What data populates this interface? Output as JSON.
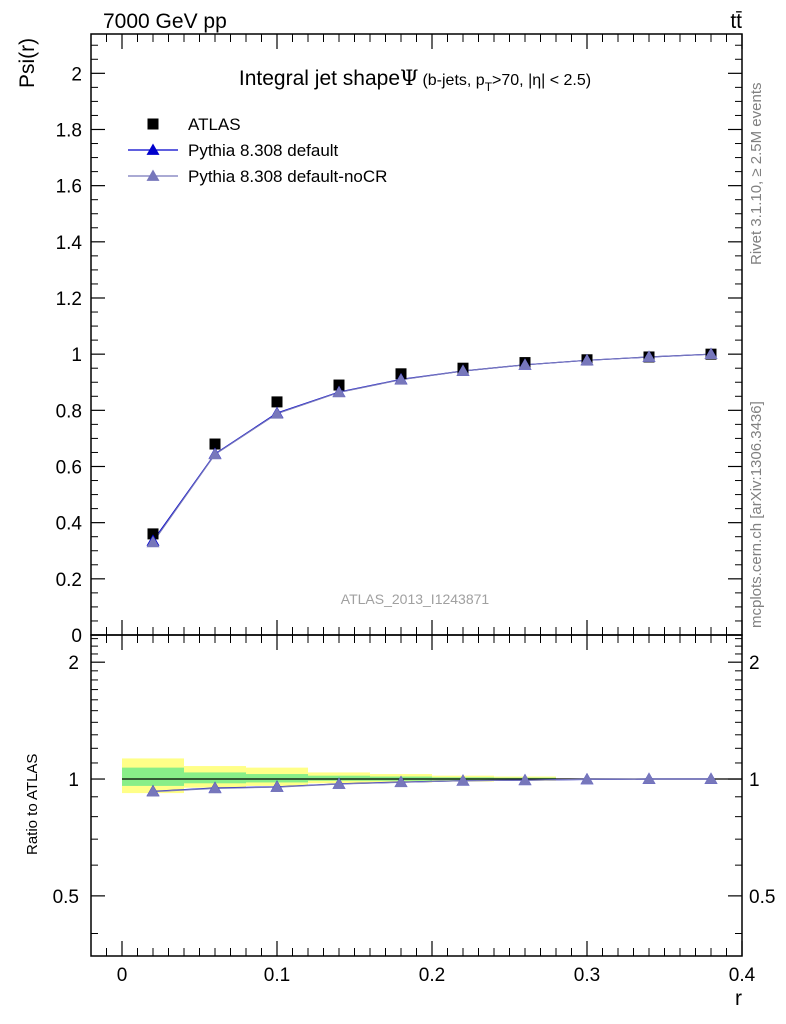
{
  "header": {
    "energy_label": "7000 GeV pp",
    "process_label": "tt̄"
  },
  "side_labels": {
    "rivet": "Rivet 3.1.10, ≥ 2.5M events",
    "mcplots": "mcplots.cern.ch [arXiv:1306.3436]"
  },
  "chart_data": [
    {
      "type": "scatter",
      "title_main": "Integral jet shape",
      "title_symbol": "Ψ",
      "title_sub": "(b-jets, p",
      "title_sub_subscript": "T",
      "title_sub_rest": ">70, |η| < 2.5)",
      "ylabel": "Psi(r)",
      "xlabel": "r",
      "watermark": "ATLAS_2013_I1243871",
      "xlim": [
        -0.02,
        0.4
      ],
      "ylim": [
        0,
        2.14
      ],
      "yticks": [
        0,
        0.2,
        0.4,
        0.6,
        0.8,
        1,
        1.2,
        1.4,
        1.6,
        1.8,
        2
      ],
      "ytick_labels": [
        "0",
        "0.2",
        "0.4",
        "0.6",
        "0.8",
        "1",
        "1.2",
        "1.4",
        "1.6",
        "1.8",
        "2"
      ],
      "legend_position": "top-left",
      "series": [
        {
          "name": "ATLAS",
          "marker": "square",
          "color": "#000000",
          "x": [
            0.02,
            0.06,
            0.1,
            0.14,
            0.18,
            0.22,
            0.26,
            0.3,
            0.34,
            0.38
          ],
          "y": [
            0.36,
            0.68,
            0.83,
            0.89,
            0.93,
            0.95,
            0.97,
            0.98,
            0.99,
            1.0
          ]
        },
        {
          "name": "Pythia 8.308 default",
          "marker": "triangle",
          "color": "#0000cc",
          "x": [
            0.02,
            0.06,
            0.1,
            0.14,
            0.18,
            0.22,
            0.26,
            0.3,
            0.34,
            0.38
          ],
          "y": [
            0.335,
            0.645,
            0.79,
            0.865,
            0.91,
            0.94,
            0.962,
            0.978,
            0.99,
            1.0
          ]
        },
        {
          "name": "Pythia 8.308 default-noCR",
          "marker": "triangle",
          "color": "#7777bb",
          "x": [
            0.02,
            0.06,
            0.1,
            0.14,
            0.18,
            0.22,
            0.26,
            0.3,
            0.34,
            0.38
          ],
          "y": [
            0.33,
            0.643,
            0.788,
            0.864,
            0.909,
            0.94,
            0.962,
            0.978,
            0.99,
            1.0
          ]
        }
      ]
    },
    {
      "type": "scatter",
      "ylabel": "Ratio to ATLAS",
      "xlabel": "r",
      "xlim": [
        -0.02,
        0.4
      ],
      "ylim": [
        0.35,
        2.35
      ],
      "y_scale": "log",
      "yticks": [
        0.5,
        1,
        2
      ],
      "ytick_labels": [
        "0.5",
        "1",
        "2"
      ],
      "xticks": [
        0,
        0.1,
        0.2,
        0.3,
        0.4
      ],
      "xtick_labels": [
        "0",
        "0.1",
        "0.2",
        "0.3",
        "0.4"
      ],
      "uncertainty_bands": [
        {
          "x_range": [
            0.0,
            0.04
          ],
          "yellow": [
            0.92,
            1.13
          ],
          "green": [
            0.96,
            1.07
          ]
        },
        {
          "x_range": [
            0.04,
            0.08
          ],
          "yellow": [
            0.95,
            1.08
          ],
          "green": [
            0.975,
            1.04
          ]
        },
        {
          "x_range": [
            0.08,
            0.12
          ],
          "yellow": [
            0.96,
            1.07
          ],
          "green": [
            0.98,
            1.03
          ]
        },
        {
          "x_range": [
            0.12,
            0.16
          ],
          "yellow": [
            0.975,
            1.04
          ],
          "green": [
            0.99,
            1.02
          ]
        },
        {
          "x_range": [
            0.16,
            0.2
          ],
          "yellow": [
            0.98,
            1.03
          ],
          "green": [
            0.99,
            1.015
          ]
        },
        {
          "x_range": [
            0.2,
            0.24
          ],
          "yellow": [
            0.985,
            1.02
          ],
          "green": [
            0.993,
            1.01
          ]
        },
        {
          "x_range": [
            0.24,
            0.28
          ],
          "yellow": [
            0.99,
            1.015
          ],
          "green": [
            0.995,
            1.008
          ]
        }
      ],
      "series": [
        {
          "name": "Pythia 8.308 default",
          "marker": "triangle",
          "color": "#0000cc",
          "x": [
            0.02,
            0.06,
            0.1,
            0.14,
            0.18,
            0.22,
            0.26,
            0.3,
            0.34,
            0.38
          ],
          "y": [
            0.93,
            0.948,
            0.955,
            0.972,
            0.982,
            0.99,
            0.993,
            0.998,
            1.0,
            1.0
          ]
        },
        {
          "name": "Pythia 8.308 default-noCR",
          "marker": "triangle",
          "color": "#7777bb",
          "x": [
            0.02,
            0.06,
            0.1,
            0.14,
            0.18,
            0.22,
            0.26,
            0.3,
            0.34,
            0.38
          ],
          "y": [
            0.928,
            0.946,
            0.953,
            0.971,
            0.981,
            0.99,
            0.993,
            0.998,
            1.0,
            1.0
          ]
        }
      ]
    }
  ]
}
